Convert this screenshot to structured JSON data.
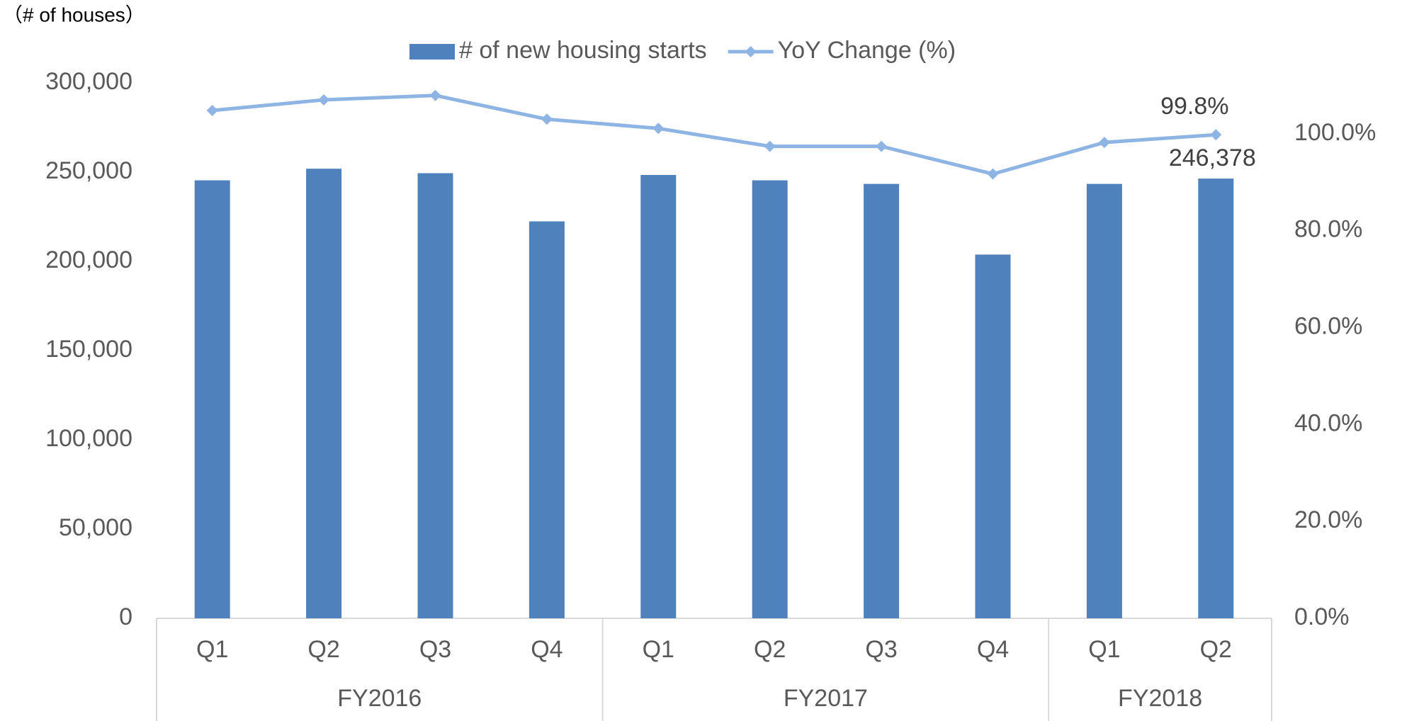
{
  "chart_data": {
    "type": "bar-line",
    "y_axis_title": "（# of houses）",
    "categories": [
      "Q1",
      "Q2",
      "Q3",
      "Q4",
      "Q1",
      "Q2",
      "Q3",
      "Q4",
      "Q1",
      "Q2"
    ],
    "groups": [
      {
        "label": "FY2016",
        "count": 4
      },
      {
        "label": "FY2017",
        "count": 4
      },
      {
        "label": "FY2018",
        "count": 2
      }
    ],
    "series": [
      {
        "name": "# of new housing starts",
        "type": "bar",
        "color": "#4f81bd",
        "values": [
          245400,
          251900,
          249400,
          222400,
          248400,
          245400,
          243400,
          203800,
          243400,
          246378
        ],
        "value_labels": [
          null,
          null,
          null,
          null,
          null,
          null,
          null,
          null,
          null,
          "246,378"
        ]
      },
      {
        "name": "YoY Change (%)",
        "type": "line",
        "axis": "y2",
        "color": "#8eb4e3",
        "values": [
          104.8,
          107.0,
          107.9,
          103.0,
          101.1,
          97.4,
          97.4,
          91.7,
          98.2,
          99.8
        ],
        "value_labels": [
          null,
          null,
          null,
          null,
          null,
          null,
          null,
          null,
          null,
          "99.8%"
        ]
      }
    ],
    "ylim": [
      0,
      300000
    ],
    "yticks": [
      0,
      {
        "value": 50000,
        "label": "50,000"
      },
      {
        "value": 100000,
        "label": "100,000"
      },
      {
        "value": 150000,
        "label": "150,000"
      },
      {
        "value": 200000,
        "label": "200,000"
      },
      {
        "value": 250000,
        "label": "250,000"
      },
      {
        "value": 300000,
        "label": "300,000"
      }
    ],
    "y2lim": [
      0,
      110.5
    ],
    "y2ticks": [
      {
        "value": 0,
        "label": "0.0%"
      },
      {
        "value": 20,
        "label": "20.0%"
      },
      {
        "value": 40,
        "label": "40.0%"
      },
      {
        "value": 60,
        "label": "60.0%"
      },
      {
        "value": 80,
        "label": "80.0%"
      },
      {
        "value": 100,
        "label": "100.0%"
      }
    ],
    "legend": "top",
    "grid": false
  }
}
